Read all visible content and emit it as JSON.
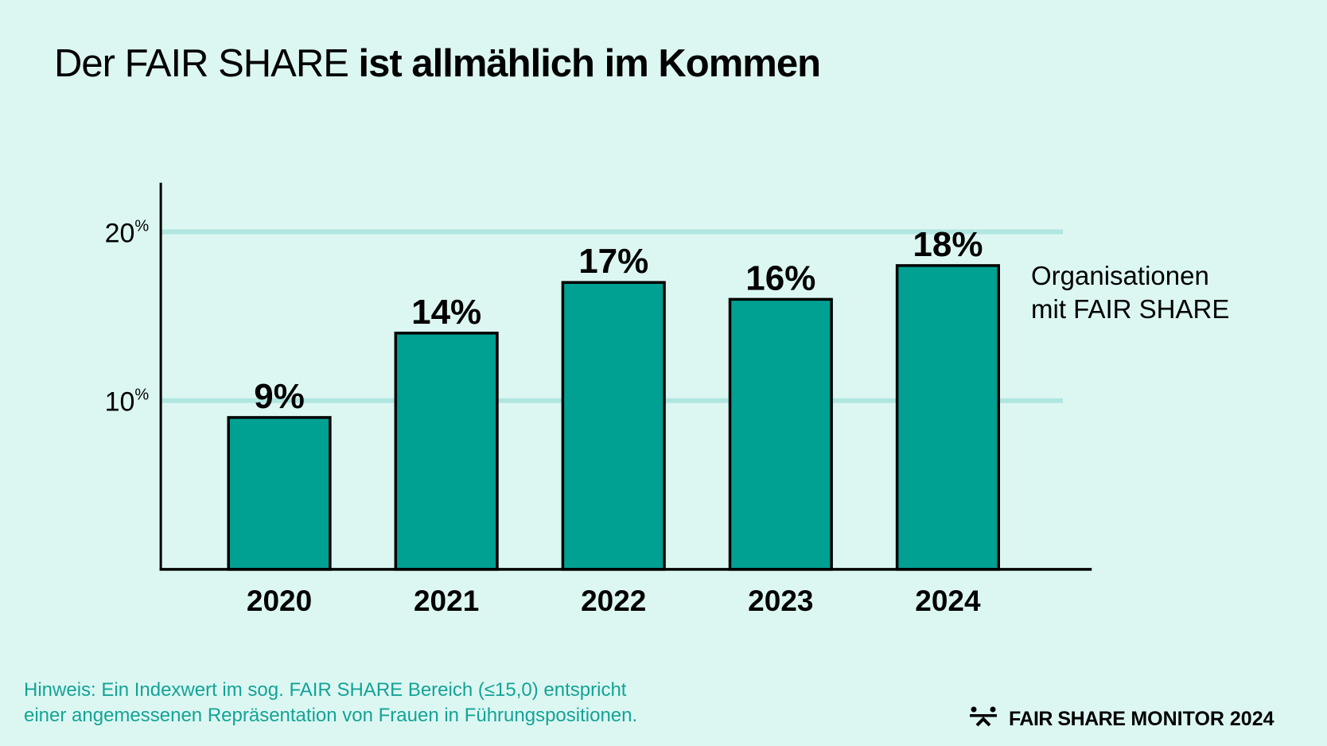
{
  "header": {
    "title_light": "Der FAIR SHARE",
    "title_bold": "ist allmählich im Kommen"
  },
  "colors": {
    "background": "#dcf7f2",
    "bar_fill": "#00a093",
    "gridline": "#b0e6df",
    "note_text": "#14a396"
  },
  "chart_data": {
    "type": "bar",
    "title": "Der FAIR SHARE ist allmählich im Kommen",
    "categories": [
      "2020",
      "2021",
      "2022",
      "2023",
      "2024"
    ],
    "values": [
      9,
      14,
      17,
      16,
      18
    ],
    "data_labels": [
      "9%",
      "14%",
      "17%",
      "16%",
      "18%"
    ],
    "series": [
      {
        "name": "Organisationen mit FAIR SHARE",
        "values": [
          9,
          14,
          17,
          16,
          18
        ]
      }
    ],
    "xlabel": "",
    "ylabel": "",
    "ylim": [
      0,
      23
    ],
    "yticks": [
      10,
      20
    ],
    "ytick_labels": [
      {
        "num": "10",
        "unit": "%"
      },
      {
        "num": "20",
        "unit": "%"
      }
    ],
    "grid": true,
    "legend_position": "right"
  },
  "legend": {
    "line1": "Organisationen",
    "line2": "mit FAIR SHARE"
  },
  "note": {
    "line1": "Hinweis: Ein Indexwert im sog. FAIR SHARE Bereich (≤15,0) entspricht",
    "line2": "einer angemessenen Repräsentation von Frauen in Führungspositionen."
  },
  "brand": {
    "icon": "fair-share-logo-icon",
    "part1": "FAIR SHARE",
    "part2": "MONITOR 2024"
  }
}
